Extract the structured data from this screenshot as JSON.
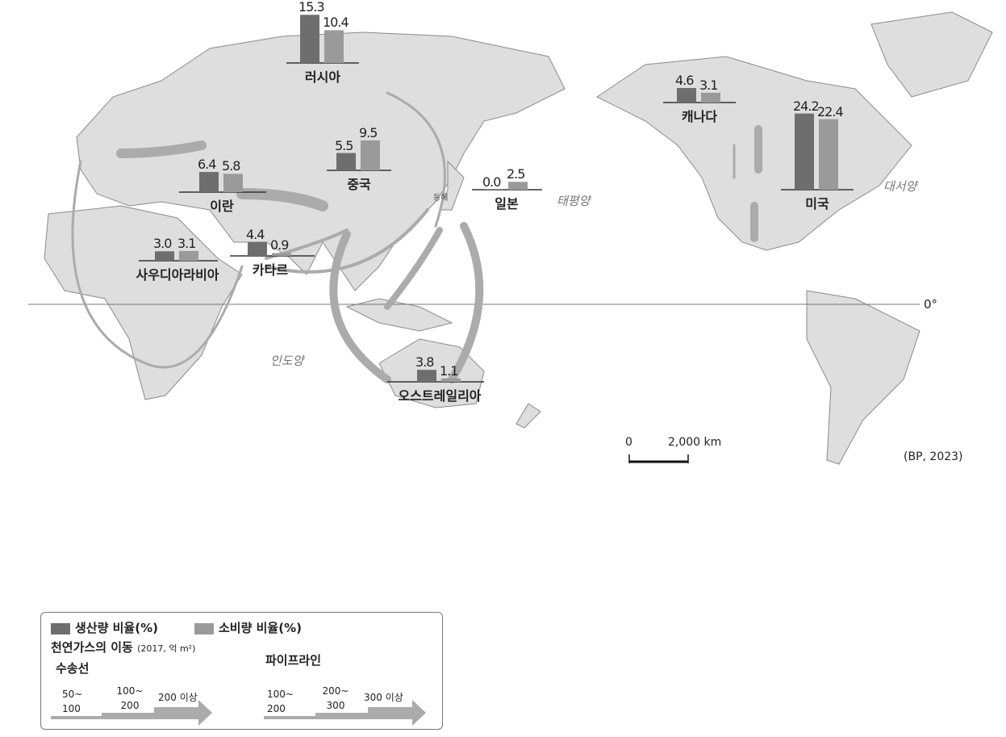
{
  "colors": {
    "production": "#6e6e6e",
    "consumption": "#9a9a9a",
    "land": "#dedede",
    "flow": "#ababab"
  },
  "countries": [
    {
      "name": "러시아",
      "production": 15.3,
      "consumption": 10.4
    },
    {
      "name": "캐나다",
      "production": 4.6,
      "consumption": 3.1
    },
    {
      "name": "미국",
      "production": 24.2,
      "consumption": 22.4
    },
    {
      "name": "중국",
      "production": 5.5,
      "consumption": 9.5
    },
    {
      "name": "일본",
      "production": 0.0,
      "consumption": 2.5
    },
    {
      "name": "이란",
      "production": 6.4,
      "consumption": 5.8
    },
    {
      "name": "카타르",
      "production": 4.4,
      "consumption": 0.9
    },
    {
      "name": "사우디아라비아",
      "production": 3.0,
      "consumption": 3.1
    },
    {
      "name": "오스트레일리아",
      "production": 3.8,
      "consumption": 1.1
    }
  ],
  "oceans": {
    "pacific": "태평양",
    "atlantic": "대서양",
    "indian": "인도양",
    "east_sea": "동해"
  },
  "equator": "0°",
  "scale": {
    "zero": "0",
    "distance": "2,000 km"
  },
  "source": "(BP, 2023)",
  "legend": {
    "production": "생산량 비율(%)",
    "consumption": "소비량 비율(%)",
    "title": "천연가스의 이동",
    "title_note": "(2017, 억 m²)",
    "ship": "수송선",
    "pipeline": "파이프라인",
    "ship_classes": [
      "50~ 100",
      "100~ 200",
      "200 이상"
    ],
    "pipe_classes": [
      "100~ 200",
      "200~ 300",
      "300 이상"
    ]
  }
}
